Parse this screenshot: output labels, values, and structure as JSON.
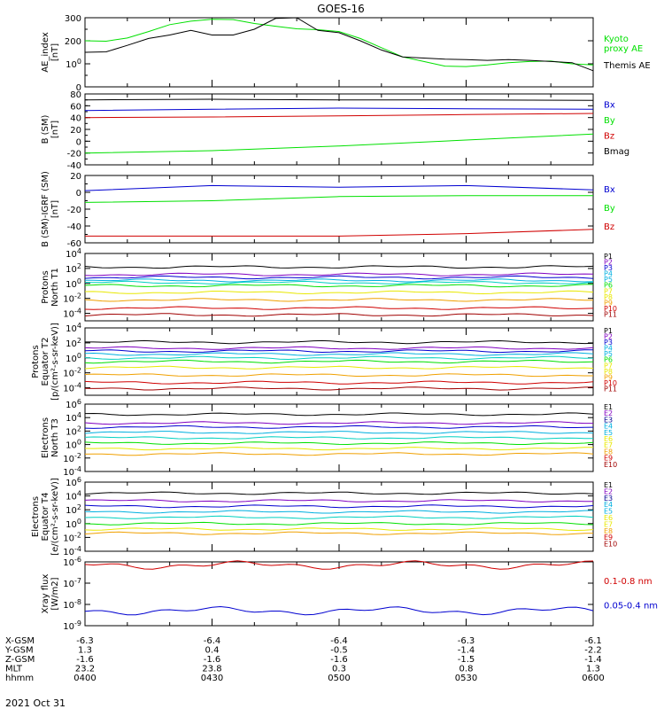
{
  "title": "GOES-16",
  "date_label": "2021 Oct 31",
  "orbit": {
    "rows": [
      {
        "label": "X-GSM",
        "values": [
          "-6.3",
          "-6.4",
          "-6.4",
          "-6.3",
          "-6.1"
        ]
      },
      {
        "label": "Y-GSM",
        "values": [
          "1.3",
          "0.4",
          "-0.5",
          "-1.4",
          "-2.2"
        ]
      },
      {
        "label": "Z-GSM",
        "values": [
          "-1.6",
          "-1.6",
          "-1.6",
          "-1.5",
          "-1.4"
        ]
      },
      {
        "label": "MLT",
        "values": [
          "23.2",
          "23.8",
          "0.3",
          "0.8",
          "1.3"
        ]
      },
      {
        "label": "hhmm",
        "values": [
          "0400",
          "0430",
          "0500",
          "0530",
          "0600"
        ]
      }
    ]
  },
  "colors": {
    "black": "#000000",
    "blue": "#0000d0",
    "green": "#00e000",
    "red": "#d00000",
    "darkred": "#a00000",
    "cyan": "#00b0e0",
    "teal": "#00d0c0",
    "yellow": "#e8e800",
    "orange": "#f0a000",
    "purple": "#8000c0",
    "navy": "#000090",
    "magenta": "#c000c0"
  },
  "chart_data": [
    {
      "type": "line",
      "ylabel": "AE_index\n[nT]",
      "ylim": [
        0,
        300
      ],
      "yscale": "linear",
      "ticks": [
        {
          "v": 0,
          "t": "0"
        },
        {
          "v": 100,
          "t": "100"
        },
        {
          "v": 200,
          "t": "200"
        },
        {
          "v": 300,
          "t": "300"
        }
      ],
      "xlim": [
        "04:00",
        "06:00"
      ],
      "legend": [
        {
          "name": "Kyoto\nproxy AE",
          "color": "green"
        },
        {
          "name": "Themis AE",
          "color": "black"
        }
      ],
      "series": [
        {
          "name": "Kyoto proxy AE",
          "color": "green",
          "x": [
            0,
            5,
            10,
            15,
            20,
            25,
            30,
            35,
            40,
            45,
            50,
            55,
            60,
            65,
            70,
            75,
            80,
            85,
            90,
            95,
            100,
            105,
            110,
            115,
            120
          ],
          "y": [
            200,
            198,
            212,
            240,
            270,
            285,
            293,
            292,
            275,
            263,
            252,
            248,
            240,
            210,
            170,
            130,
            110,
            90,
            88,
            95,
            105,
            110,
            112,
            100,
            95
          ]
        },
        {
          "name": "Themis AE",
          "color": "black",
          "x": [
            0,
            5,
            10,
            15,
            20,
            25,
            30,
            35,
            40,
            45,
            50,
            55,
            60,
            65,
            70,
            75,
            80,
            85,
            90,
            95,
            100,
            105,
            110,
            115,
            120
          ],
          "y": [
            150,
            152,
            180,
            210,
            225,
            245,
            225,
            225,
            250,
            297,
            300,
            245,
            235,
            200,
            160,
            130,
            125,
            120,
            118,
            115,
            118,
            115,
            110,
            105,
            70
          ]
        }
      ]
    },
    {
      "type": "line",
      "ylabel": "B (SM)\n[nT]",
      "ylim": [
        -40,
        80
      ],
      "yscale": "linear",
      "ticks": [
        {
          "v": -40,
          "t": "-40"
        },
        {
          "v": -20,
          "t": "-20"
        },
        {
          "v": 0,
          "t": "0"
        },
        {
          "v": 20,
          "t": "20"
        },
        {
          "v": 40,
          "t": "40"
        },
        {
          "v": 60,
          "t": "60"
        },
        {
          "v": 80,
          "t": "80"
        }
      ],
      "xlim": [
        "04:00",
        "06:00"
      ],
      "legend": [
        {
          "name": "Bx",
          "color": "blue"
        },
        {
          "name": "By",
          "color": "green"
        },
        {
          "name": "Bz",
          "color": "red"
        },
        {
          "name": "Bmag",
          "color": "black"
        }
      ],
      "series": [
        {
          "name": "Bmag",
          "color": "black",
          "x": [
            0,
            30,
            60,
            90,
            120
          ],
          "y": [
            70,
            71,
            70,
            70,
            69
          ]
        },
        {
          "name": "Bx",
          "color": "blue",
          "x": [
            0,
            30,
            60,
            90,
            120
          ],
          "y": [
            52,
            54,
            56,
            55,
            54
          ]
        },
        {
          "name": "Bz",
          "color": "red",
          "x": [
            0,
            30,
            60,
            90,
            120
          ],
          "y": [
            40,
            41,
            43,
            45,
            47
          ]
        },
        {
          "name": "By",
          "color": "green",
          "x": [
            0,
            30,
            60,
            90,
            120
          ],
          "y": [
            -20,
            -16,
            -8,
            2,
            12
          ]
        }
      ]
    },
    {
      "type": "line",
      "ylabel": "B (SM)-IGRF (SM)\n[nT]",
      "ylim": [
        -60,
        20
      ],
      "yscale": "linear",
      "ticks": [
        {
          "v": -60,
          "t": "-60"
        },
        {
          "v": -40,
          "t": "-40"
        },
        {
          "v": -20,
          "t": "-20"
        },
        {
          "v": 0,
          "t": "0"
        },
        {
          "v": 20,
          "t": "20"
        }
      ],
      "xlim": [
        "04:00",
        "06:00"
      ],
      "legend": [
        {
          "name": "Bx",
          "color": "blue"
        },
        {
          "name": "By",
          "color": "green"
        },
        {
          "name": "Bz",
          "color": "red"
        }
      ],
      "series": [
        {
          "name": "Bx",
          "color": "blue",
          "x": [
            0,
            30,
            60,
            90,
            120
          ],
          "y": [
            2,
            8,
            6,
            8,
            3
          ]
        },
        {
          "name": "By",
          "color": "green",
          "x": [
            0,
            30,
            60,
            90,
            120
          ],
          "y": [
            -12,
            -10,
            -5,
            -4,
            -4
          ]
        },
        {
          "name": "Bz",
          "color": "red",
          "x": [
            0,
            30,
            60,
            90,
            120
          ],
          "y": [
            -52,
            -52,
            -52,
            -49,
            -44
          ]
        }
      ]
    },
    {
      "type": "line",
      "ylabel": "Protons\nNorth T1",
      "ylim": [
        -5,
        4
      ],
      "yscale": "log",
      "ticks": [
        {
          "v": -4,
          "t": "10-4"
        },
        {
          "v": -2,
          "t": "10-2"
        },
        {
          "v": 0,
          "t": "100"
        },
        {
          "v": 2,
          "t": "102"
        },
        {
          "v": 4,
          "t": "104"
        }
      ],
      "xlim": [
        "04:00",
        "06:00"
      ],
      "legend": [
        {
          "name": "P1",
          "color": "black"
        },
        {
          "name": "P2",
          "color": "purple"
        },
        {
          "name": "P3",
          "color": "blue"
        },
        {
          "name": "P4",
          "color": "cyan"
        },
        {
          "name": "P5",
          "color": "cyan"
        },
        {
          "name": "P6",
          "color": "green"
        },
        {
          "name": "P7",
          "color": "yellow"
        },
        {
          "name": "P8",
          "color": "yellow"
        },
        {
          "name": "P9",
          "color": "orange"
        },
        {
          "name": "P10",
          "color": "red"
        },
        {
          "name": "P11",
          "color": "darkred"
        }
      ],
      "series": [
        {
          "name": "P1",
          "color": "black",
          "y0": 2.2
        },
        {
          "name": "P2",
          "color": "purple",
          "y0": 1.2
        },
        {
          "name": "P3",
          "color": "blue",
          "y0": 0.8
        },
        {
          "name": "P4",
          "color": "cyan",
          "y0": 0.4
        },
        {
          "name": "P5",
          "color": "teal",
          "y0": 0.1
        },
        {
          "name": "P6",
          "color": "green",
          "y0": -0.3
        },
        {
          "name": "P7",
          "color": "yellow",
          "y0": -1.2
        },
        {
          "name": "P8",
          "color": "orange",
          "y0": -2.2
        },
        {
          "name": "P9",
          "color": "red",
          "y0": -3.3
        },
        {
          "name": "P10",
          "color": "darkred",
          "y0": -4.2
        }
      ]
    },
    {
      "type": "line",
      "ylabel": "Protons\nEquator T2\n[p/(cm²-s-sr-keV)]",
      "ylim": [
        -5,
        4
      ],
      "yscale": "log",
      "ticks": [
        {
          "v": -4,
          "t": "10-4"
        },
        {
          "v": -2,
          "t": "10-2"
        },
        {
          "v": 0,
          "t": "100"
        },
        {
          "v": 2,
          "t": "102"
        },
        {
          "v": 4,
          "t": "104"
        }
      ],
      "xlim": [
        "04:00",
        "06:00"
      ],
      "legend": [
        {
          "name": "P1",
          "color": "black"
        },
        {
          "name": "P2",
          "color": "purple"
        },
        {
          "name": "P3",
          "color": "blue"
        },
        {
          "name": "P4",
          "color": "cyan"
        },
        {
          "name": "P5",
          "color": "cyan"
        },
        {
          "name": "P6",
          "color": "green"
        },
        {
          "name": "P7",
          "color": "yellow"
        },
        {
          "name": "P8",
          "color": "yellow"
        },
        {
          "name": "P9",
          "color": "orange"
        },
        {
          "name": "P10",
          "color": "red"
        },
        {
          "name": "P11",
          "color": "darkred"
        }
      ],
      "series": [
        {
          "name": "P1",
          "color": "black",
          "y0": 2.1
        },
        {
          "name": "P2",
          "color": "purple",
          "y0": 1.3
        },
        {
          "name": "P3",
          "color": "blue",
          "y0": 0.9
        },
        {
          "name": "P4",
          "color": "cyan",
          "y0": 0.5
        },
        {
          "name": "P5",
          "color": "teal",
          "y0": 0.0
        },
        {
          "name": "P6",
          "color": "green",
          "y0": -0.5
        },
        {
          "name": "P7",
          "color": "yellow",
          "y0": -1.3
        },
        {
          "name": "P8",
          "color": "orange",
          "y0": -2.3
        },
        {
          "name": "P9",
          "color": "red",
          "y0": -3.3
        },
        {
          "name": "P10",
          "color": "darkred",
          "y0": -4.1
        }
      ]
    },
    {
      "type": "line",
      "ylabel": "Electrons\nNorth T3",
      "ylim": [
        -4,
        6
      ],
      "yscale": "log",
      "ticks": [
        {
          "v": -4,
          "t": "10-4"
        },
        {
          "v": -2,
          "t": "10-2"
        },
        {
          "v": 0,
          "t": "100"
        },
        {
          "v": 2,
          "t": "102"
        },
        {
          "v": 4,
          "t": "104"
        },
        {
          "v": 6,
          "t": "106"
        }
      ],
      "xlim": [
        "04:00",
        "06:00"
      ],
      "legend": [
        {
          "name": "E1",
          "color": "black"
        },
        {
          "name": "E2",
          "color": "purple"
        },
        {
          "name": "E3",
          "color": "navy"
        },
        {
          "name": "E4",
          "color": "cyan"
        },
        {
          "name": "E5",
          "color": "cyan"
        },
        {
          "name": "E6",
          "color": "yellow"
        },
        {
          "name": "E7",
          "color": "yellow"
        },
        {
          "name": "E8",
          "color": "orange"
        },
        {
          "name": "E9",
          "color": "red"
        },
        {
          "name": "E10",
          "color": "darkred"
        }
      ],
      "series": [
        {
          "name": "E1",
          "color": "black",
          "y0": 4.5
        },
        {
          "name": "E2",
          "color": "purple",
          "y0": 3.2
        },
        {
          "name": "E3",
          "color": "blue",
          "y0": 2.6
        },
        {
          "name": "E4",
          "color": "cyan",
          "y0": 1.8
        },
        {
          "name": "E5",
          "color": "teal",
          "y0": 1.0
        },
        {
          "name": "E6",
          "color": "green",
          "y0": 0.2
        },
        {
          "name": "E7",
          "color": "yellow",
          "y0": -0.6
        },
        {
          "name": "E8",
          "color": "orange",
          "y0": -1.4
        }
      ]
    },
    {
      "type": "line",
      "ylabel": "Electrons\nEquator T4\n[e/(cm²-s-sr-keV)]",
      "ylim": [
        -4,
        6
      ],
      "yscale": "log",
      "ticks": [
        {
          "v": -4,
          "t": "10-4"
        },
        {
          "v": -2,
          "t": "10-2"
        },
        {
          "v": 0,
          "t": "100"
        },
        {
          "v": 2,
          "t": "102"
        },
        {
          "v": 4,
          "t": "104"
        },
        {
          "v": 6,
          "t": "106"
        }
      ],
      "xlim": [
        "04:00",
        "06:00"
      ],
      "legend": [
        {
          "name": "E1",
          "color": "black"
        },
        {
          "name": "E2",
          "color": "purple"
        },
        {
          "name": "E3",
          "color": "navy"
        },
        {
          "name": "E4",
          "color": "cyan"
        },
        {
          "name": "E5",
          "color": "cyan"
        },
        {
          "name": "E6",
          "color": "yellow"
        },
        {
          "name": "E7",
          "color": "yellow"
        },
        {
          "name": "E8",
          "color": "orange"
        },
        {
          "name": "E9",
          "color": "red"
        },
        {
          "name": "E10",
          "color": "darkred"
        }
      ],
      "series": [
        {
          "name": "E1",
          "color": "black",
          "y0": 4.4
        },
        {
          "name": "E2",
          "color": "purple",
          "y0": 3.3
        },
        {
          "name": "E3",
          "color": "blue",
          "y0": 2.5
        },
        {
          "name": "E4",
          "color": "cyan",
          "y0": 1.7
        },
        {
          "name": "E5",
          "color": "teal",
          "y0": 0.9
        },
        {
          "name": "E6",
          "color": "green",
          "y0": 0.0
        },
        {
          "name": "E7",
          "color": "yellow",
          "y0": -0.8
        },
        {
          "name": "E8",
          "color": "orange",
          "y0": -1.4
        }
      ]
    },
    {
      "type": "line",
      "ylabel": "Xray flux\n[W/m2]",
      "ylim": [
        -9,
        -6
      ],
      "yscale": "log",
      "ticks": [
        {
          "v": -9,
          "t": "10-9"
        },
        {
          "v": -8,
          "t": "10-8"
        },
        {
          "v": -7,
          "t": "10-7"
        },
        {
          "v": -6,
          "t": "10-6"
        }
      ],
      "xlim": [
        "04:00",
        "06:00"
      ],
      "legend": [
        {
          "name": "0.1-0.8 nm",
          "color": "red"
        },
        {
          "name": "0.05-0.4 nm",
          "color": "blue"
        }
      ],
      "series": [
        {
          "name": "0.1-0.8 nm",
          "color": "red",
          "y0": -6.15
        },
        {
          "name": "0.05-0.4 nm",
          "color": "blue",
          "y0": -8.3
        }
      ]
    }
  ]
}
